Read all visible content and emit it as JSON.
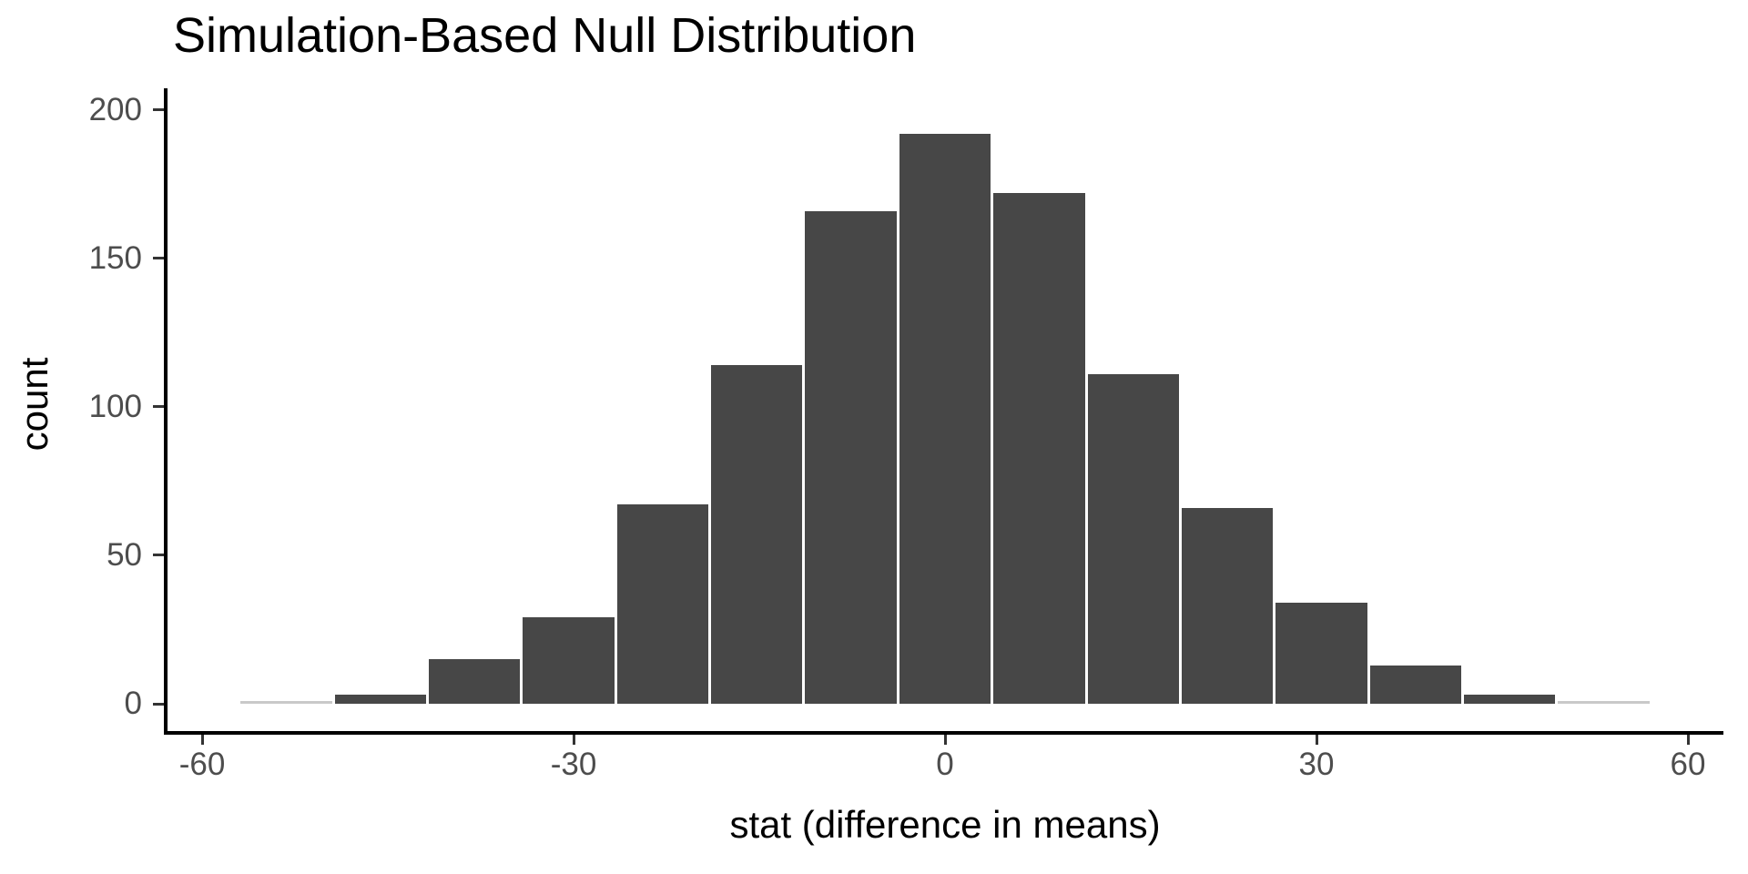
{
  "title": "Simulation-Based Null Distribution",
  "x_axis": {
    "label": "stat (difference in means)",
    "tick_labels": [
      "-60",
      "-30",
      "0",
      "30",
      "60"
    ],
    "tick_values": [
      -60,
      -30,
      0,
      30,
      60
    ]
  },
  "y_axis": {
    "label": "count",
    "tick_labels": [
      "0",
      "50",
      "100",
      "150",
      "200"
    ],
    "tick_values": [
      0,
      50,
      100,
      150,
      200
    ]
  },
  "chart_data": {
    "type": "bar",
    "subtype": "histogram",
    "title": "Simulation-Based Null Distribution",
    "xlabel": "stat (difference in means)",
    "ylabel": "count",
    "bins": 15,
    "bin_width": 7.6,
    "bin_edges": [
      -57,
      -49.4,
      -41.8,
      -34.2,
      -26.6,
      -19,
      -11.4,
      -3.8,
      3.8,
      11.4,
      19,
      26.6,
      34.2,
      41.8,
      49.4,
      57
    ],
    "bin_centers": [
      -53.2,
      -45.6,
      -38,
      -30.4,
      -22.8,
      -15.2,
      -7.6,
      0,
      7.6,
      15.2,
      22.8,
      30.4,
      38,
      45.6,
      53.2
    ],
    "counts": [
      1,
      3,
      15,
      29,
      67,
      114,
      166,
      192,
      172,
      111,
      66,
      34,
      13,
      3,
      1
    ],
    "xlim": [
      -63,
      63
    ],
    "ylim": [
      0,
      200
    ],
    "grid": false,
    "legend": false,
    "colors": {
      "bar_fill": "#474747",
      "edge_bin_fill": "#c9c9c9",
      "axis_line": "#000000",
      "tick_mark": "#333333",
      "tick_label": "#4d4d4d",
      "title_text": "#000000",
      "background": "#ffffff"
    }
  }
}
